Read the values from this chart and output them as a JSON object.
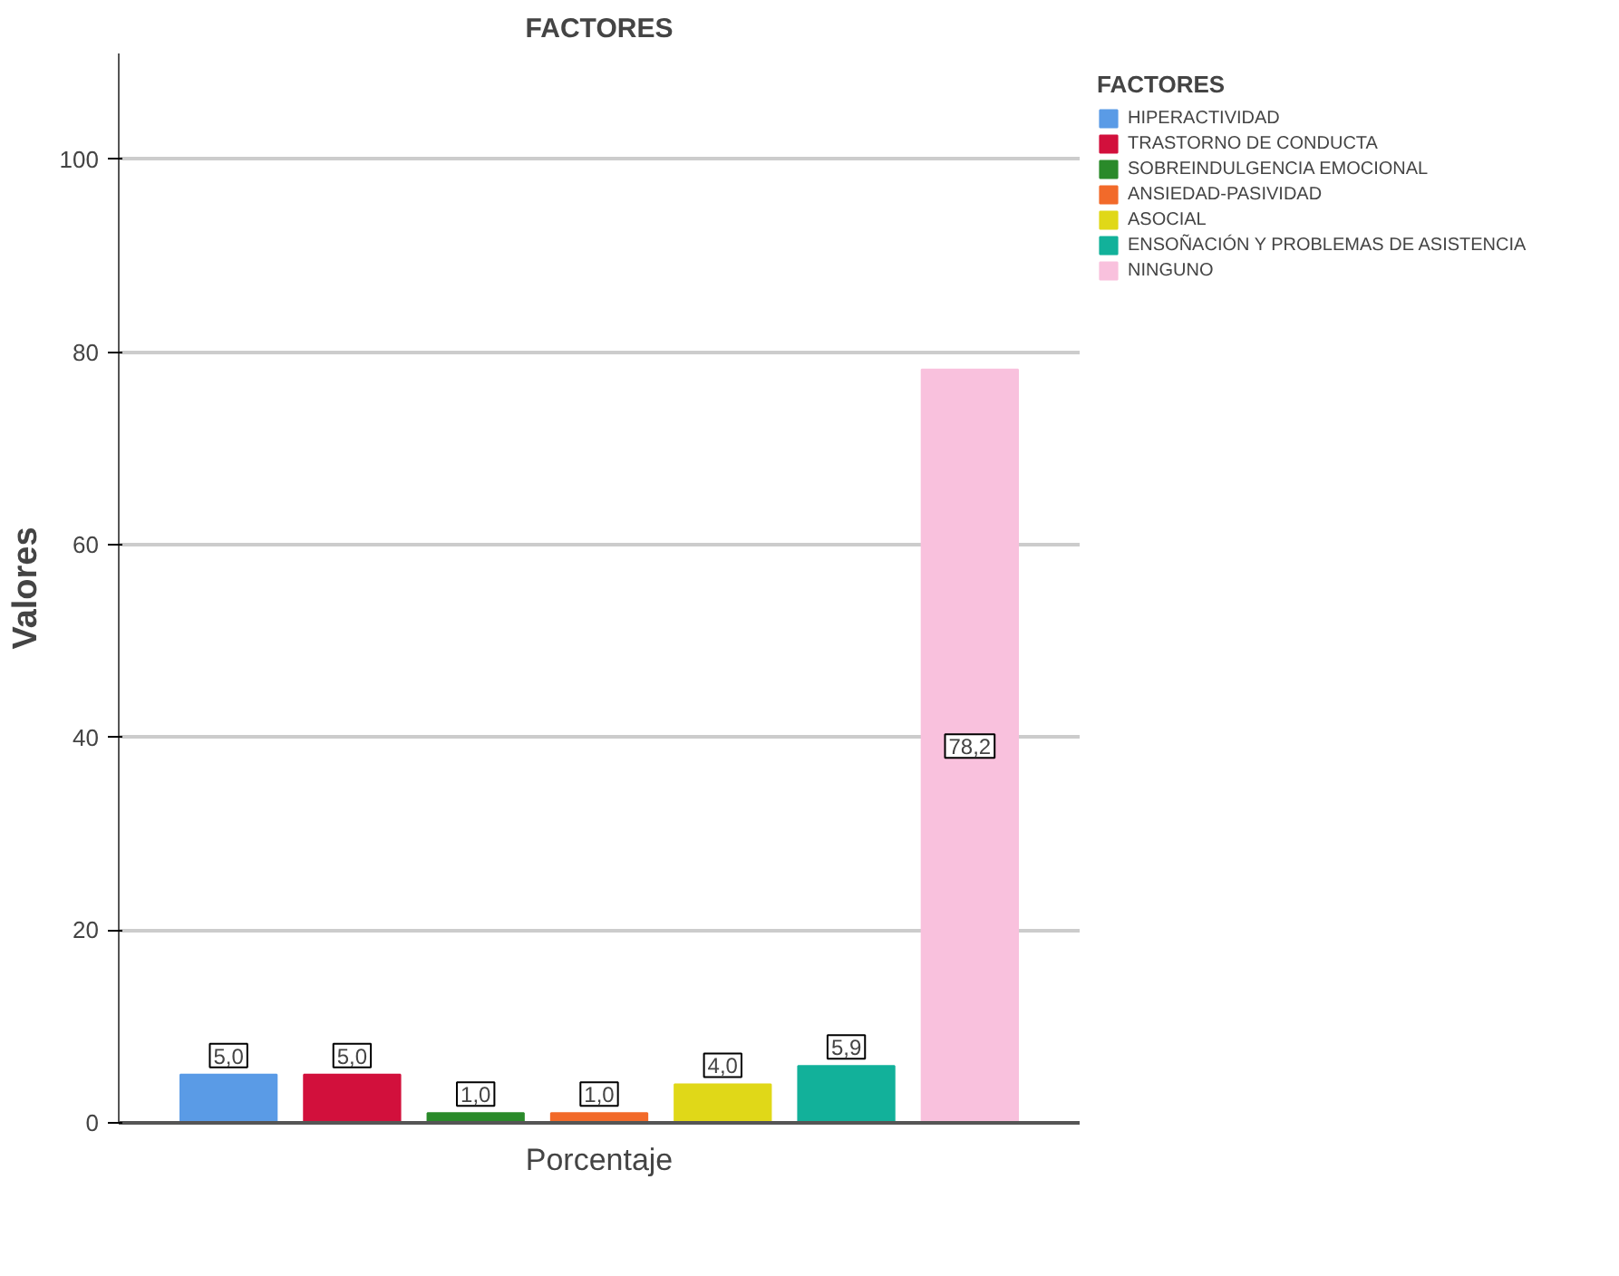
{
  "chart_data": {
    "type": "bar",
    "title": "FACTORES",
    "ylabel": "Valores",
    "legend_title": "FACTORES",
    "categories": [
      "Porcentaje"
    ],
    "series": [
      {
        "name": "HIPERACTIVIDAD",
        "color": "#5a9be6",
        "values": [
          5.0
        ],
        "value_labels": [
          "5,0"
        ]
      },
      {
        "name": "TRASTORNO DE CONDUCTA",
        "color": "#d2103c",
        "values": [
          5.0
        ],
        "value_labels": [
          "5,0"
        ]
      },
      {
        "name": "SOBREINDULGENCIA EMOCIONAL",
        "color": "#2a8a2a",
        "values": [
          1.0
        ],
        "value_labels": [
          "1,0"
        ]
      },
      {
        "name": "ANSIEDAD-PASIVIDAD",
        "color": "#f26a2a",
        "values": [
          1.0
        ],
        "value_labels": [
          "1,0"
        ]
      },
      {
        "name": "ASOCIAL",
        "color": "#e0d818",
        "values": [
          4.0
        ],
        "value_labels": [
          "4,0"
        ]
      },
      {
        "name": "ENSOÑACIÓN Y PROBLEMAS DE ASISTENCIA",
        "color": "#12b19a",
        "values": [
          5.9
        ],
        "value_labels": [
          "5,9"
        ]
      },
      {
        "name": "NINGUNO",
        "color": "#f9c1dd",
        "values": [
          78.2
        ],
        "value_labels": [
          "78,2"
        ]
      }
    ],
    "ylim": [
      0,
      111
    ],
    "yticks": [
      0,
      20,
      40,
      60,
      80,
      100
    ],
    "grid": "y",
    "legend": "right"
  }
}
